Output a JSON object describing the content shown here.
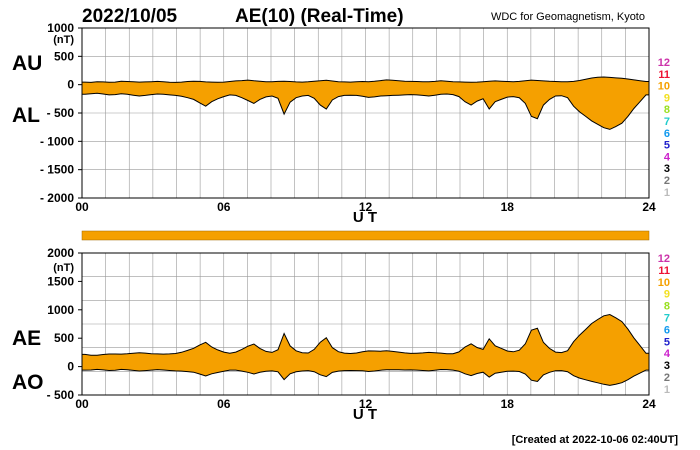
{
  "header": {
    "date": "2022/10/05",
    "title": "AE(10) (Real-Time)",
    "source": "WDC for Geomagnetism, Kyoto"
  },
  "footer": {
    "created": "[Created at 2022-10-06 02:40UT]"
  },
  "colors": {
    "fill": "#f5a000",
    "line": "#000000",
    "grid": "#9a9a9a",
    "bar": "#f5a000"
  },
  "station_scale": {
    "labels": [
      "12",
      "11",
      "10",
      "9",
      "8",
      "7",
      "6",
      "5",
      "4",
      "3",
      "2",
      "1"
    ],
    "colors": [
      "#cc33aa",
      "#ee1133",
      "#f5a000",
      "#f2e020",
      "#99e020",
      "#22cccc",
      "#1199ee",
      "#2222cc",
      "#cc22cc",
      "#000000",
      "#777777",
      "#bbbbbb"
    ]
  },
  "chart_data": [
    {
      "type": "area",
      "id": "au-al",
      "series": [
        {
          "name": "AU",
          "values": [
            45,
            40,
            50,
            48,
            42,
            46,
            60,
            55,
            50,
            45,
            48,
            52,
            58,
            50,
            44,
            40,
            46,
            55,
            62,
            58,
            48,
            45,
            44,
            46,
            55,
            66,
            72,
            80,
            68,
            60,
            52,
            50,
            58,
            62,
            55,
            48,
            45,
            50,
            62,
            70,
            78,
            65,
            52,
            48,
            46,
            50,
            56,
            52,
            60,
            72,
            85,
            78,
            70,
            62,
            58,
            56,
            52,
            50,
            58,
            68,
            60,
            52,
            48,
            45,
            42,
            46,
            52,
            60,
            66,
            62,
            55,
            50,
            58,
            70,
            80,
            74,
            66,
            60,
            55,
            52,
            50,
            58,
            74,
            95,
            118,
            130,
            135,
            128,
            120,
            112,
            100,
            85,
            70,
            55
          ]
        },
        {
          "name": "AL",
          "values": [
            -170,
            -160,
            -150,
            -165,
            -180,
            -175,
            -160,
            -170,
            -185,
            -200,
            -190,
            -175,
            -165,
            -170,
            -180,
            -190,
            -205,
            -230,
            -260,
            -320,
            -380,
            -300,
            -250,
            -210,
            -180,
            -190,
            -230,
            -280,
            -330,
            -260,
            -215,
            -200,
            -240,
            -520,
            -310,
            -230,
            -200,
            -190,
            -240,
            -360,
            -430,
            -270,
            -210,
            -190,
            -185,
            -190,
            -205,
            -225,
            -215,
            -200,
            -195,
            -190,
            -185,
            -180,
            -175,
            -180,
            -190,
            -200,
            -185,
            -170,
            -165,
            -175,
            -210,
            -300,
            -360,
            -290,
            -250,
            -430,
            -300,
            -260,
            -220,
            -210,
            -230,
            -330,
            -560,
            -600,
            -360,
            -260,
            -200,
            -195,
            -230,
            -380,
            -480,
            -560,
            -640,
            -700,
            -760,
            -790,
            -740,
            -680,
            -560,
            -420,
            -300,
            -180
          ]
        }
      ],
      "x_start": 0,
      "x_end": 24,
      "xlabel": "U T",
      "ylabel": "(nT)",
      "ylim": [
        -2000,
        1000
      ],
      "yticks": [
        "1000",
        "500",
        "0",
        "- 500",
        "- 1000",
        "- 1500",
        "- 2000"
      ],
      "xticks": [
        "00",
        "06",
        "12",
        "18",
        "24"
      ],
      "side_labels": [
        "AU",
        "AL"
      ],
      "grid": true
    },
    {
      "type": "area",
      "id": "ae-ao",
      "series": [
        {
          "name": "AE",
          "values": [
            215,
            200,
            200,
            213,
            222,
            221,
            220,
            225,
            235,
            245,
            238,
            227,
            223,
            220,
            224,
            230,
            251,
            285,
            322,
            378,
            428,
            345,
            294,
            256,
            235,
            256,
            302,
            360,
            398,
            320,
            267,
            250,
            298,
            582,
            365,
            278,
            245,
            240,
            302,
            430,
            508,
            335,
            262,
            238,
            231,
            240,
            261,
            277,
            275,
            272,
            280,
            268,
            255,
            242,
            233,
            236,
            242,
            250,
            243,
            238,
            225,
            227,
            258,
            345,
            402,
            336,
            302,
            490,
            366,
            322,
            275,
            260,
            288,
            400,
            640,
            674,
            426,
            320,
            255,
            247,
            280,
            438,
            554,
            655,
            758,
            830,
            895,
            918,
            860,
            792,
            660,
            505,
            370,
            235
          ]
        },
        {
          "name": "AO",
          "values": [
            -62,
            -60,
            -50,
            -58,
            -69,
            -64,
            -50,
            -57,
            -67,
            -77,
            -71,
            -61,
            -53,
            -60,
            -68,
            -75,
            -79,
            -88,
            -99,
            -131,
            -166,
            -127,
            -103,
            -82,
            -62,
            -62,
            -79,
            -100,
            -131,
            -100,
            -81,
            -75,
            -91,
            -229,
            -127,
            -91,
            -77,
            -70,
            -89,
            -145,
            -176,
            -102,
            -79,
            -71,
            -69,
            -70,
            -74,
            -86,
            -77,
            -64,
            -55,
            -56,
            -57,
            -59,
            -58,
            -62,
            -69,
            -75,
            -63,
            -51,
            -52,
            -61,
            -81,
            -127,
            -159,
            -122,
            -99,
            -185,
            -117,
            -99,
            -82,
            -80,
            -86,
            -130,
            -240,
            -263,
            -147,
            -100,
            -72,
            -71,
            -90,
            -161,
            -203,
            -232,
            -261,
            -285,
            -312,
            -331,
            -310,
            -284,
            -230,
            -167,
            -115,
            -62
          ]
        }
      ],
      "x_start": 0,
      "x_end": 24,
      "xlabel": "U T",
      "ylabel": "(nT)",
      "ylim": [
        -500,
        2000
      ],
      "yticks": [
        "2000",
        "(nT)",
        "1500",
        "1000",
        "500",
        "0",
        "- 500"
      ],
      "xticks": [
        "00",
        "06",
        "12",
        "18",
        "24"
      ],
      "side_labels": [
        "AE",
        "AO"
      ],
      "grid": true
    }
  ]
}
